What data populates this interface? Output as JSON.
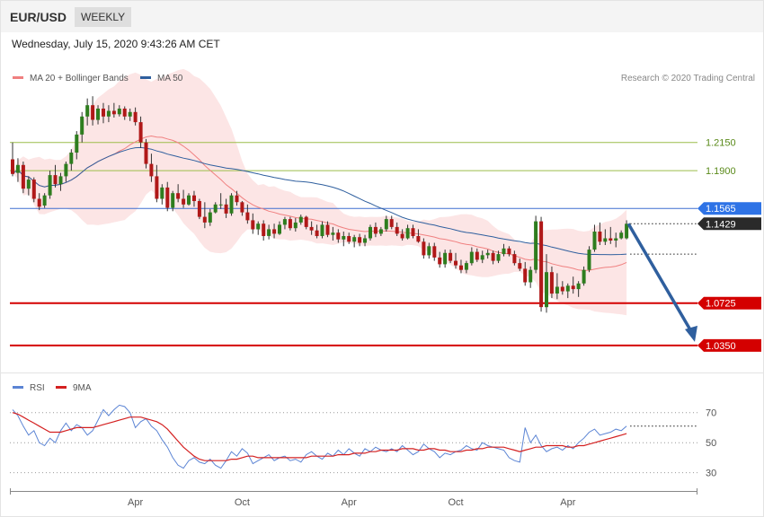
{
  "header": {
    "symbol": "EUR/USD",
    "timeframe": "WEEKLY"
  },
  "datetime": "Wednesday, July 15, 2020 9:43:26 AM CET",
  "legend_main": [
    {
      "label": "MA 20 + Bollinger Bands",
      "color": "#f08080"
    },
    {
      "label": "MA 50",
      "color": "#2f5f9e"
    }
  ],
  "legend_rsi": [
    {
      "label": "RSI",
      "color": "#5b84d4"
    },
    {
      "label": "9MA",
      "color": "#d42020"
    }
  ],
  "copyright": "Research © 2020 Trading Central",
  "colors": {
    "up": "#2e7d1e",
    "down": "#b01818",
    "resistance": "#9cbd4a",
    "support": "#d40000",
    "pivot": "#3f6fd0",
    "arrow": "#2f5f9e"
  },
  "chart_data": {
    "type": "candlestick",
    "timeframe": "weekly",
    "x_ticks": [
      "Apr",
      "Oct",
      "Apr",
      "Oct",
      "Apr"
    ],
    "ylim": [
      1.015,
      1.2617
    ],
    "levels": [
      {
        "label": "1.2150",
        "value": 1.215,
        "kind": "resistance"
      },
      {
        "label": "1.1900",
        "value": 1.19,
        "kind": "resistance"
      },
      {
        "label": "1.1565",
        "value": 1.1565,
        "kind": "pivot"
      },
      {
        "label": "1.1429",
        "value": 1.1429,
        "kind": "last-price"
      },
      {
        "label": "1.0725",
        "value": 1.0725,
        "kind": "support"
      },
      {
        "label": "1.0350",
        "value": 1.035,
        "kind": "support"
      }
    ],
    "forecast": {
      "from": 1.1429,
      "to": 1.035
    },
    "candles": [
      [
        1.2,
        1.215,
        1.185,
        1.187
      ],
      [
        1.188,
        1.201,
        1.18,
        1.195
      ],
      [
        1.195,
        1.198,
        1.17,
        1.174
      ],
      [
        1.174,
        1.185,
        1.168,
        1.182
      ],
      [
        1.182,
        1.184,
        1.162,
        1.165
      ],
      [
        1.165,
        1.17,
        1.155,
        1.158
      ],
      [
        1.159,
        1.17,
        1.157,
        1.168
      ],
      [
        1.168,
        1.19,
        1.165,
        1.186
      ],
      [
        1.186,
        1.195,
        1.175,
        1.178
      ],
      [
        1.178,
        1.188,
        1.172,
        1.185
      ],
      [
        1.185,
        1.198,
        1.18,
        1.196
      ],
      [
        1.196,
        1.209,
        1.19,
        1.206
      ],
      [
        1.206,
        1.225,
        1.2,
        1.222
      ],
      [
        1.222,
        1.242,
        1.215,
        1.238
      ],
      [
        1.238,
        1.254,
        1.23,
        1.248
      ],
      [
        1.248,
        1.256,
        1.23,
        1.235
      ],
      [
        1.235,
        1.248,
        1.231,
        1.245
      ],
      [
        1.245,
        1.25,
        1.232,
        1.238
      ],
      [
        1.238,
        1.248,
        1.233,
        1.243
      ],
      [
        1.243,
        1.25,
        1.237,
        1.24
      ],
      [
        1.24,
        1.248,
        1.238,
        1.245
      ],
      [
        1.245,
        1.247,
        1.235,
        1.238
      ],
      [
        1.238,
        1.245,
        1.234,
        1.242
      ],
      [
        1.242,
        1.246,
        1.23,
        1.233
      ],
      [
        1.233,
        1.238,
        1.21,
        1.215
      ],
      [
        1.215,
        1.218,
        1.192,
        1.196
      ],
      [
        1.196,
        1.205,
        1.18,
        1.185
      ],
      [
        1.185,
        1.195,
        1.162,
        1.165
      ],
      [
        1.165,
        1.178,
        1.16,
        1.175
      ],
      [
        1.175,
        1.18,
        1.154,
        1.157
      ],
      [
        1.157,
        1.172,
        1.154,
        1.17
      ],
      [
        1.17,
        1.178,
        1.162,
        1.165
      ],
      [
        1.165,
        1.173,
        1.157,
        1.16
      ],
      [
        1.16,
        1.17,
        1.159,
        1.168
      ],
      [
        1.168,
        1.172,
        1.158,
        1.163
      ],
      [
        1.163,
        1.165,
        1.147,
        1.149
      ],
      [
        1.149,
        1.162,
        1.139,
        1.144
      ],
      [
        1.144,
        1.156,
        1.141,
        1.153
      ],
      [
        1.153,
        1.162,
        1.152,
        1.16
      ],
      [
        1.16,
        1.17,
        1.156,
        1.16
      ],
      [
        1.16,
        1.165,
        1.148,
        1.152
      ],
      [
        1.152,
        1.17,
        1.15,
        1.168
      ],
      [
        1.168,
        1.172,
        1.159,
        1.162
      ],
      [
        1.162,
        1.163,
        1.15,
        1.153
      ],
      [
        1.153,
        1.16,
        1.143,
        1.146
      ],
      [
        1.146,
        1.152,
        1.134,
        1.138
      ],
      [
        1.138,
        1.145,
        1.133,
        1.143
      ],
      [
        1.143,
        1.146,
        1.128,
        1.132
      ],
      [
        1.132,
        1.142,
        1.129,
        1.138
      ],
      [
        1.138,
        1.143,
        1.13,
        1.134
      ],
      [
        1.134,
        1.145,
        1.133,
        1.142
      ],
      [
        1.142,
        1.149,
        1.138,
        1.147
      ],
      [
        1.147,
        1.149,
        1.137,
        1.139
      ],
      [
        1.139,
        1.148,
        1.136,
        1.144
      ],
      [
        1.144,
        1.151,
        1.142,
        1.149
      ],
      [
        1.149,
        1.15,
        1.138,
        1.14
      ],
      [
        1.14,
        1.145,
        1.133,
        1.137
      ],
      [
        1.137,
        1.142,
        1.13,
        1.132
      ],
      [
        1.132,
        1.145,
        1.13,
        1.142
      ],
      [
        1.142,
        1.145,
        1.131,
        1.133
      ],
      [
        1.133,
        1.14,
        1.128,
        1.135
      ],
      [
        1.135,
        1.138,
        1.126,
        1.129
      ],
      [
        1.129,
        1.136,
        1.123,
        1.132
      ],
      [
        1.132,
        1.135,
        1.125,
        1.127
      ],
      [
        1.127,
        1.133,
        1.122,
        1.131
      ],
      [
        1.131,
        1.134,
        1.123,
        1.126
      ],
      [
        1.126,
        1.133,
        1.123,
        1.13
      ],
      [
        1.13,
        1.142,
        1.128,
        1.14
      ],
      [
        1.14,
        1.144,
        1.131,
        1.134
      ],
      [
        1.134,
        1.14,
        1.132,
        1.138
      ],
      [
        1.138,
        1.15,
        1.136,
        1.147
      ],
      [
        1.147,
        1.15,
        1.138,
        1.14
      ],
      [
        1.14,
        1.144,
        1.132,
        1.134
      ],
      [
        1.134,
        1.138,
        1.128,
        1.13
      ],
      [
        1.13,
        1.142,
        1.129,
        1.139
      ],
      [
        1.139,
        1.142,
        1.13,
        1.132
      ],
      [
        1.132,
        1.138,
        1.126,
        1.127
      ],
      [
        1.127,
        1.13,
        1.112,
        1.115
      ],
      [
        1.115,
        1.126,
        1.112,
        1.123
      ],
      [
        1.123,
        1.126,
        1.11,
        1.113
      ],
      [
        1.113,
        1.118,
        1.104,
        1.107
      ],
      [
        1.107,
        1.12,
        1.104,
        1.117
      ],
      [
        1.117,
        1.12,
        1.108,
        1.11
      ],
      [
        1.11,
        1.117,
        1.103,
        1.106
      ],
      [
        1.106,
        1.111,
        1.099,
        1.102
      ],
      [
        1.102,
        1.11,
        1.099,
        1.108
      ],
      [
        1.108,
        1.122,
        1.106,
        1.118
      ],
      [
        1.118,
        1.121,
        1.109,
        1.111
      ],
      [
        1.111,
        1.119,
        1.108,
        1.115
      ],
      [
        1.115,
        1.12,
        1.112,
        1.117
      ],
      [
        1.117,
        1.119,
        1.107,
        1.11
      ],
      [
        1.11,
        1.119,
        1.108,
        1.116
      ],
      [
        1.116,
        1.125,
        1.114,
        1.121
      ],
      [
        1.121,
        1.123,
        1.114,
        1.116
      ],
      [
        1.116,
        1.119,
        1.106,
        1.108
      ],
      [
        1.108,
        1.112,
        1.101,
        1.103
      ],
      [
        1.103,
        1.109,
        1.088,
        1.091
      ],
      [
        1.091,
        1.105,
        1.086,
        1.102
      ],
      [
        1.102,
        1.15,
        1.099,
        1.145
      ],
      [
        1.145,
        1.149,
        1.065,
        1.069
      ],
      [
        1.069,
        1.116,
        1.064,
        1.1
      ],
      [
        1.1,
        1.105,
        1.077,
        1.081
      ],
      [
        1.081,
        1.099,
        1.076,
        1.087
      ],
      [
        1.087,
        1.092,
        1.08,
        1.083
      ],
      [
        1.083,
        1.09,
        1.077,
        1.088
      ],
      [
        1.088,
        1.096,
        1.081,
        1.085
      ],
      [
        1.085,
        1.092,
        1.078,
        1.09
      ],
      [
        1.09,
        1.105,
        1.088,
        1.102
      ],
      [
        1.102,
        1.123,
        1.1,
        1.12
      ],
      [
        1.12,
        1.142,
        1.118,
        1.136
      ],
      [
        1.136,
        1.144,
        1.124,
        1.127
      ],
      [
        1.127,
        1.138,
        1.124,
        1.13
      ],
      [
        1.13,
        1.14,
        1.125,
        1.128
      ],
      [
        1.128,
        1.135,
        1.122,
        1.13
      ],
      [
        1.13,
        1.137,
        1.129,
        1.135
      ],
      [
        1.13,
        1.146,
        1.129,
        1.1429
      ]
    ],
    "rsi": {
      "yticks": [
        30,
        50,
        70
      ],
      "ylim": [
        22,
        80
      ],
      "rsi": [
        72,
        68,
        61,
        55,
        58,
        50,
        48,
        53,
        50,
        58,
        63,
        58,
        62,
        60,
        55,
        58,
        65,
        72,
        68,
        72,
        75,
        74,
        70,
        60,
        64,
        66,
        61,
        58,
        52,
        47,
        40,
        35,
        33,
        38,
        40,
        37,
        36,
        39,
        35,
        33,
        38,
        44,
        41,
        46,
        43,
        36,
        38,
        40,
        42,
        38,
        40,
        41,
        38,
        39,
        37,
        42,
        44,
        41,
        39,
        43,
        41,
        45,
        42,
        46,
        43,
        41,
        46,
        44,
        47,
        45,
        44,
        46,
        44,
        48,
        45,
        42,
        44,
        49,
        46,
        44,
        40,
        43,
        42,
        44,
        45,
        48,
        46,
        45,
        50,
        48,
        47,
        46,
        45,
        40,
        38,
        37,
        60,
        50,
        55,
        48,
        44,
        46,
        47,
        45,
        48,
        46,
        50,
        53,
        57,
        59,
        55,
        56,
        57,
        59,
        58,
        61
      ],
      "ma": [
        70,
        69,
        67,
        65,
        63,
        61,
        59,
        57,
        57,
        57,
        58,
        59,
        60,
        60,
        60,
        60,
        61,
        62,
        63,
        64,
        65,
        66,
        67,
        67,
        67,
        66,
        65,
        64,
        62,
        59,
        55,
        51,
        47,
        44,
        41,
        39,
        38,
        38,
        38,
        38,
        38,
        39,
        39,
        40,
        41,
        41,
        40,
        40,
        40,
        40,
        40,
        40,
        40,
        40,
        40,
        40,
        41,
        41,
        41,
        41,
        41,
        42,
        42,
        42,
        43,
        43,
        43,
        44,
        44,
        45,
        45,
        45,
        45,
        46,
        46,
        46,
        45,
        45,
        46,
        46,
        45,
        45,
        44,
        44,
        44,
        45,
        45,
        46,
        46,
        47,
        47,
        47,
        47,
        46,
        45,
        44,
        45,
        46,
        47,
        47,
        48,
        48,
        48,
        48,
        47,
        47,
        48,
        48,
        49,
        50,
        51,
        52,
        53,
        54,
        55,
        56
      ]
    }
  }
}
